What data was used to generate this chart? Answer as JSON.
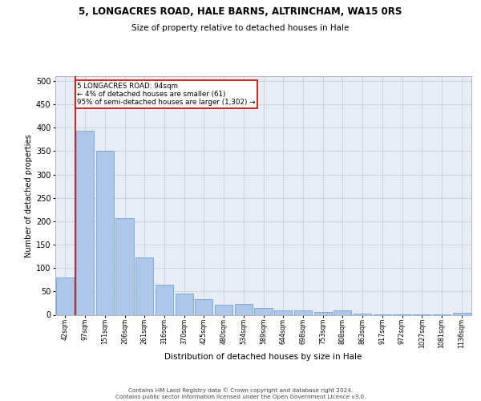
{
  "title_line1": "5, LONGACRES ROAD, HALE BARNS, ALTRINCHAM, WA15 0RS",
  "title_line2": "Size of property relative to detached houses in Hale",
  "xlabel": "Distribution of detached houses by size in Hale",
  "ylabel": "Number of detached properties",
  "footer_line1": "Contains HM Land Registry data © Crown copyright and database right 2024.",
  "footer_line2": "Contains public sector information licensed under the Open Government Licence v3.0.",
  "bin_labels": [
    "42sqm",
    "97sqm",
    "151sqm",
    "206sqm",
    "261sqm",
    "316sqm",
    "370sqm",
    "425sqm",
    "480sqm",
    "534sqm",
    "589sqm",
    "644sqm",
    "698sqm",
    "753sqm",
    "808sqm",
    "863sqm",
    "917sqm",
    "972sqm",
    "1027sqm",
    "1081sqm",
    "1136sqm"
  ],
  "bar_values": [
    80,
    393,
    350,
    206,
    122,
    64,
    45,
    33,
    22,
    24,
    14,
    9,
    10,
    6,
    10,
    3,
    1,
    1,
    1,
    1,
    4
  ],
  "bar_color": "#aec6e8",
  "bar_edge_color": "#5b9bd5",
  "grid_color": "#c8d0de",
  "background_color": "#e8edf5",
  "red_line_color": "#cc0000",
  "annotation_text": "5 LONGACRES ROAD: 94sqm\n← 4% of detached houses are smaller (61)\n95% of semi-detached houses are larger (1,302) →",
  "annotation_box_facecolor": "#ffffff",
  "annotation_box_edgecolor": "#cc0000",
  "ylim": [
    0,
    510
  ],
  "yticks": [
    0,
    50,
    100,
    150,
    200,
    250,
    300,
    350,
    400,
    450,
    500
  ]
}
